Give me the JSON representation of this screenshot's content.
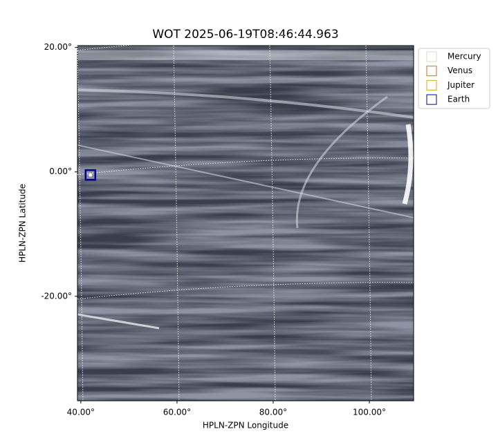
{
  "chart_data": {
    "type": "image",
    "title": "WOT 2025-06-19T08:46:44.963",
    "xlabel": "HPLN-ZPN Longitude",
    "ylabel": "HPLN-ZPN Latitude",
    "xlim": [
      39.3,
      109.2
    ],
    "ylim": [
      -36.8,
      20.3
    ],
    "xticks": [
      {
        "value": 40,
        "label": "40.00°"
      },
      {
        "value": 60,
        "label": "60.00°"
      },
      {
        "value": 80,
        "label": "80.00°"
      },
      {
        "value": 100,
        "label": "100.00°"
      }
    ],
    "yticks": [
      {
        "value": 20,
        "label": "20.00°"
      },
      {
        "value": 0,
        "label": "0.00°"
      },
      {
        "value": -20,
        "label": "-20.00°"
      }
    ],
    "grid": true,
    "legend": "outside right",
    "series": [
      {
        "name": "Mercury",
        "color": "#d9d9d9"
      },
      {
        "name": "Venus",
        "color": "#d2691e"
      },
      {
        "name": "Jupiter",
        "color": "#daa520"
      },
      {
        "name": "Earth",
        "color": "#000080",
        "x": [
          42
        ],
        "values": [
          -0.5
        ]
      }
    ]
  }
}
